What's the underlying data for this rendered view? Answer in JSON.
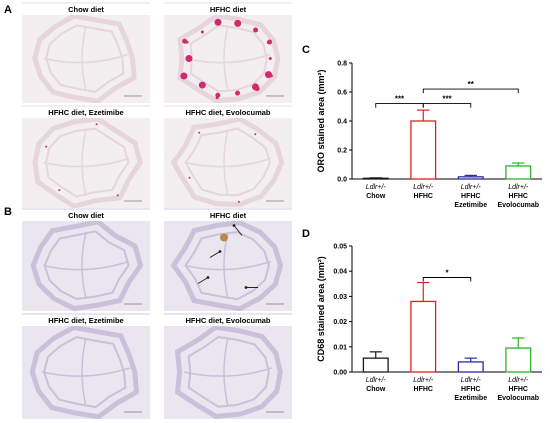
{
  "figure": {
    "panel_labels": {
      "a": "A",
      "b": "B",
      "c": "C",
      "d": "D"
    },
    "micrographs": {
      "A": [
        {
          "caption": "Chow diet",
          "stain": "oro",
          "lesion": "none"
        },
        {
          "caption": "HFHC diet",
          "stain": "oro",
          "lesion": "heavy"
        },
        {
          "caption": "HFHC diet, Ezetimibe",
          "stain": "oro",
          "lesion": "light"
        },
        {
          "caption": "HFHC diet, Evolocumab",
          "stain": "oro",
          "lesion": "light"
        }
      ],
      "B": [
        {
          "caption": "Chow diet",
          "stain": "cd68",
          "lesion": "none"
        },
        {
          "caption": "HFHC diet",
          "stain": "cd68",
          "lesion": "arrows"
        },
        {
          "caption": "HFHC diet, Ezetimibe",
          "stain": "cd68",
          "lesion": "none"
        },
        {
          "caption": "HFHC diet, Evolocumab",
          "stain": "cd68",
          "lesion": "none"
        }
      ]
    },
    "colors": {
      "oro_bg": "#f3eef0",
      "oro_tissue": "#e6d6dc",
      "oro_stain": "#d42a6a",
      "cd68_bg": "#e9e6f0",
      "cd68_tissue": "#c9c0da",
      "cd68_stain": "#b8894a"
    }
  },
  "chart_data": [
    {
      "panel": "C",
      "type": "bar",
      "ylabel": "ORO stained area (mm²)",
      "ylim": [
        0,
        0.8
      ],
      "yticks": [
        "0.0",
        "0.2",
        "0.4",
        "0.6",
        "0.8"
      ],
      "tick_values": [
        0,
        0.2,
        0.4,
        0.6,
        0.8
      ],
      "categories": [
        {
          "italic": "Ldlr+/-",
          "lines": [
            "Chow"
          ]
        },
        {
          "italic": "Ldlr+/-",
          "lines": [
            "HFHC"
          ]
        },
        {
          "italic": "Ldlr+/-",
          "lines": [
            "HFHC",
            "Ezetimibe"
          ]
        },
        {
          "italic": "Ldlr+/-",
          "lines": [
            "HFHC",
            "Evolocumab"
          ]
        }
      ],
      "values": [
        0.005,
        0.4,
        0.015,
        0.09
      ],
      "errors": [
        0.003,
        0.075,
        0.01,
        0.02
      ],
      "colors": [
        "#1a1a1a",
        "#e02020",
        "#2a2aa0",
        "#28b428"
      ],
      "significance": [
        {
          "from": 0,
          "to": 1,
          "label": "***",
          "y": 0.52
        },
        {
          "from": 1,
          "to": 2,
          "label": "***",
          "y": 0.52
        },
        {
          "from": 1,
          "to": 3,
          "label": "**",
          "y": 0.62
        }
      ]
    },
    {
      "panel": "D",
      "type": "bar",
      "ylabel": "CD68 stained area (mm²)",
      "ylim": [
        0,
        0.05
      ],
      "yticks": [
        "0.00",
        "0.01",
        "0.02",
        "0.03",
        "0.04",
        "0.05"
      ],
      "tick_values": [
        0,
        0.01,
        0.02,
        0.03,
        0.04,
        0.05
      ],
      "categories": [
        {
          "italic": "Ldlr+/-",
          "lines": [
            "Chow"
          ]
        },
        {
          "italic": "Ldlr+/-",
          "lines": [
            "HFHC"
          ]
        },
        {
          "italic": "Ldlr+/-",
          "lines": [
            "HFHC",
            "Ezetimibe"
          ]
        },
        {
          "italic": "Ldlr+/-",
          "lines": [
            "HFHC",
            "Evolocumab"
          ]
        }
      ],
      "values": [
        0.0055,
        0.028,
        0.004,
        0.0095
      ],
      "errors": [
        0.0025,
        0.0075,
        0.0015,
        0.004
      ],
      "colors": [
        "#1a1a1a",
        "#e02020",
        "#2a2aa0",
        "#28b428"
      ],
      "significance": [
        {
          "from": 1,
          "to": 2,
          "label": "*",
          "y": 0.0375
        }
      ]
    }
  ]
}
